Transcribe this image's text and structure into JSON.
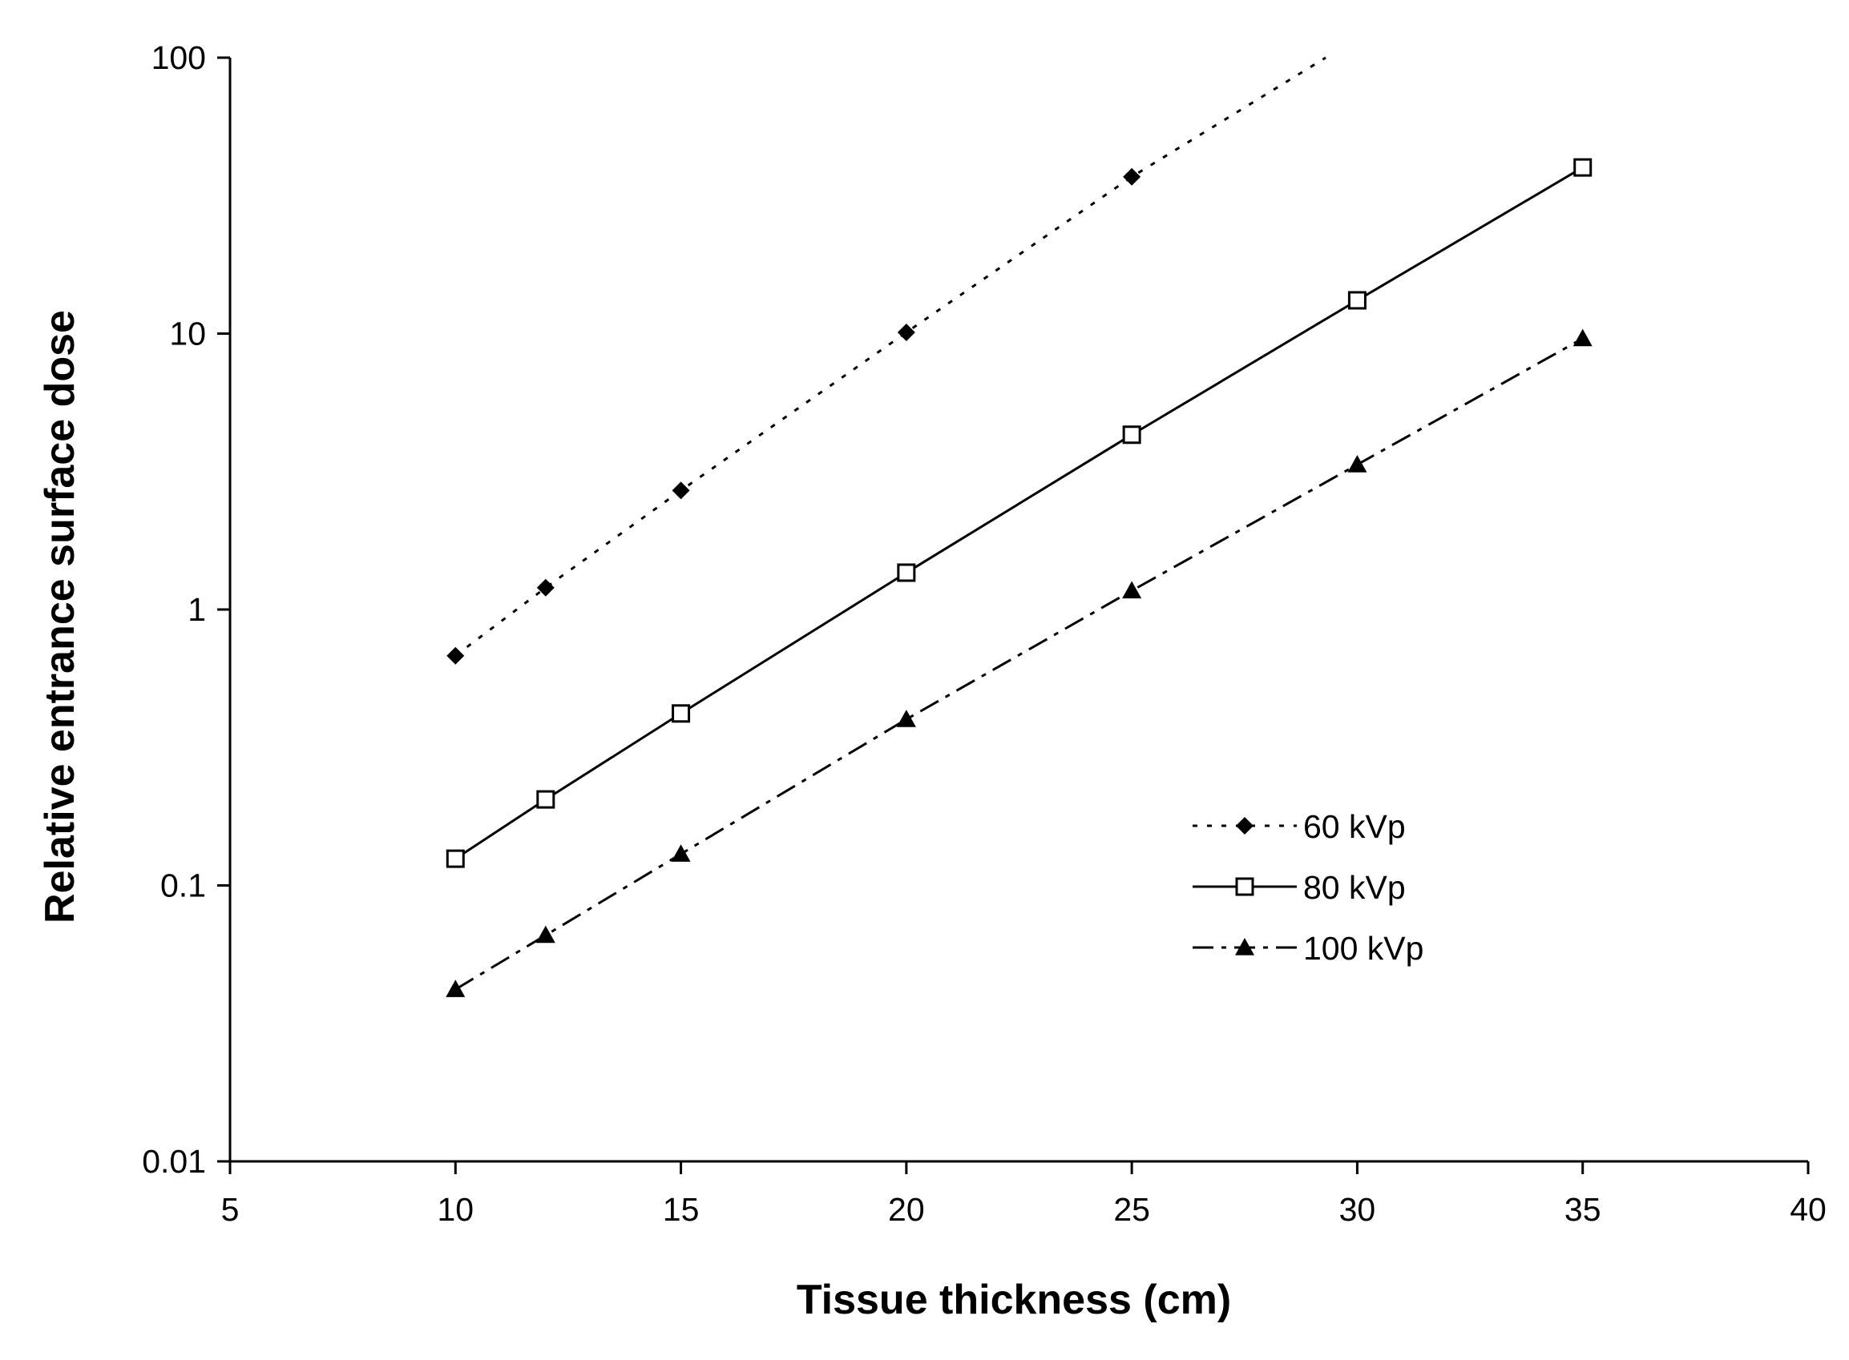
{
  "chart_data": {
    "type": "line",
    "xlabel": "Tissue thickness (cm)",
    "ylabel": "Relative entrance surface dose",
    "xlim": [
      5,
      40
    ],
    "ylim": [
      0.01,
      100
    ],
    "y_scale": "log",
    "x_ticks": [
      "5",
      "10",
      "15",
      "20",
      "25",
      "30",
      "35",
      "40"
    ],
    "y_ticks": [
      "0.01",
      "0.1",
      "1",
      "10",
      "100"
    ],
    "grid": false,
    "legend_position": "right",
    "series": [
      {
        "name": "60 kVp",
        "line_style": "dotted",
        "marker": "filled-diamond",
        "x": [
          10,
          12,
          15,
          20,
          25
        ],
        "y": [
          0.68,
          1.2,
          2.7,
          10.1,
          37
        ],
        "trend_line_to": [
          29.3,
          100
        ]
      },
      {
        "name": "80 kVp",
        "line_style": "solid",
        "marker": "open-square",
        "x": [
          10,
          12,
          15,
          20,
          25,
          30,
          35
        ],
        "y": [
          0.125,
          0.205,
          0.42,
          1.36,
          4.3,
          13.2,
          40
        ]
      },
      {
        "name": "100 kVp",
        "line_style": "dash-dot",
        "marker": "filled-triangle",
        "x": [
          10,
          12,
          15,
          20,
          25,
          30,
          35
        ],
        "y": [
          0.042,
          0.066,
          0.13,
          0.4,
          1.17,
          3.35,
          9.6
        ]
      }
    ]
  }
}
